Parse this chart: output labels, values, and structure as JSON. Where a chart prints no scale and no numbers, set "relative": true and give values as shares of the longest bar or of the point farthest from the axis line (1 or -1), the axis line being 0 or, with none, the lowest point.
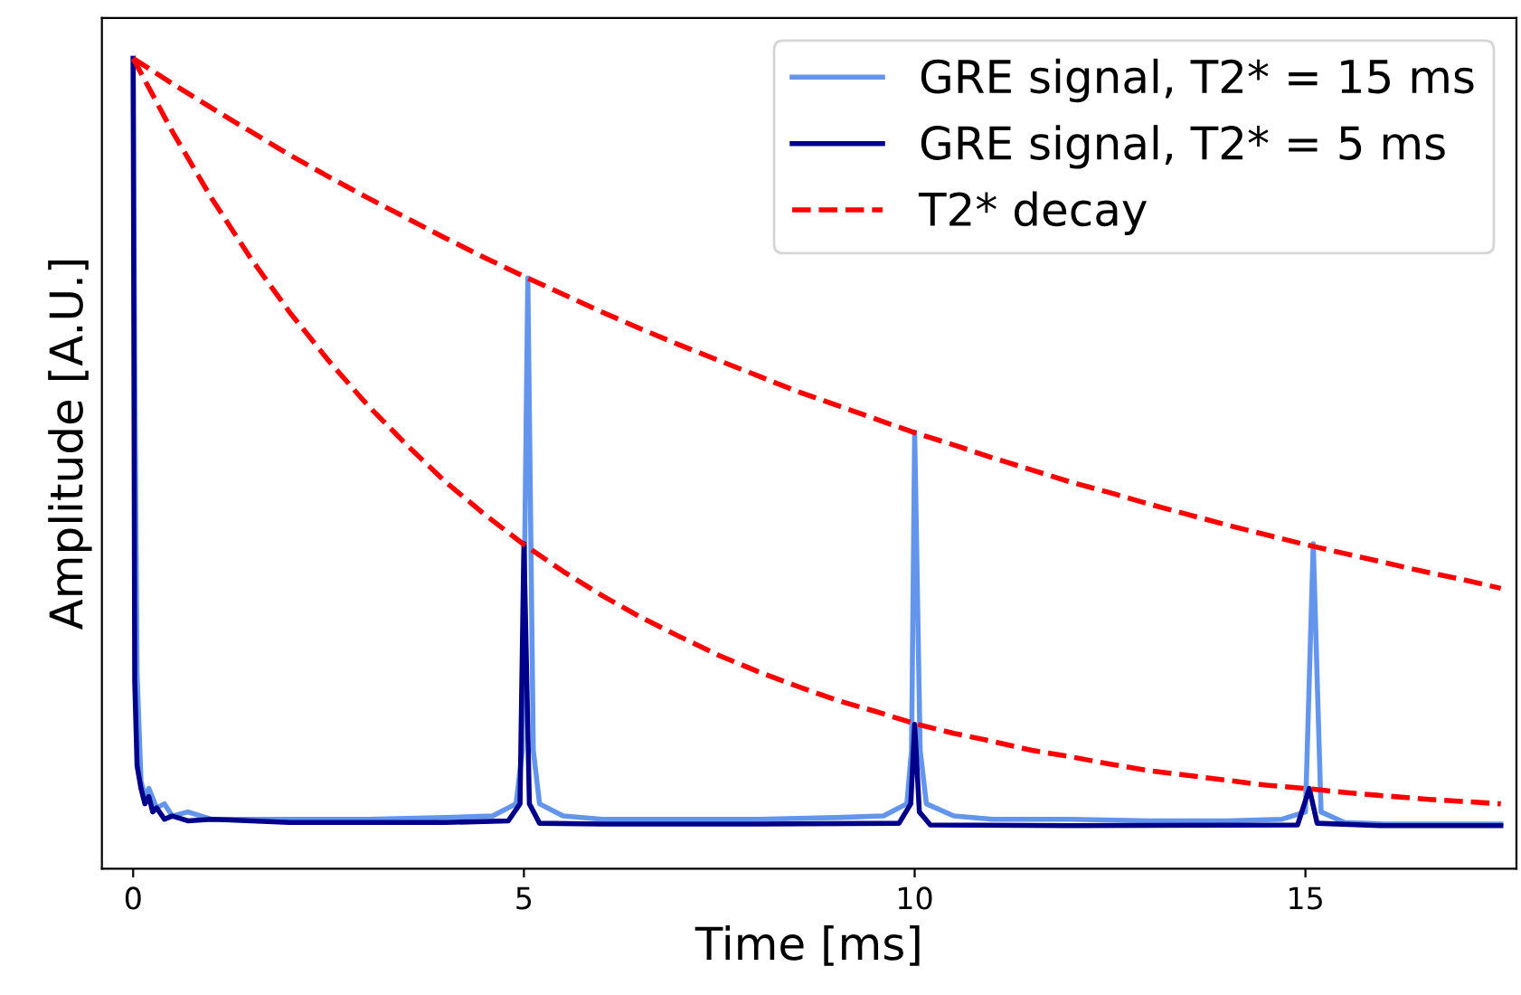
{
  "chart_data": {
    "type": "line",
    "xlabel": "Time [ms]",
    "ylabel": "Amplitude [A.U.]",
    "relative": true,
    "tick_labels": "x",
    "grid": false,
    "legend": "top right",
    "marker": "none",
    "xlim": [
      -0.4,
      17.7
    ],
    "xticks": [
      0,
      5,
      10,
      15
    ],
    "series": [
      {
        "name": "GRE signal, T2* = 15 ms",
        "color": "#6495ed",
        "line_style": "solid",
        "x": [
          0,
          0.02,
          0.05,
          0.1,
          0.15,
          0.2,
          0.3,
          0.4,
          0.5,
          0.7,
          1,
          2,
          3,
          4,
          4.6,
          4.9,
          4.98,
          5.05,
          5.12,
          5.2,
          5.5,
          6,
          7,
          8,
          9,
          9.6,
          9.9,
          9.96,
          10.0,
          10.07,
          10.15,
          10.5,
          11,
          12,
          13,
          14,
          14.7,
          15.0,
          15.1,
          15.2,
          15.5,
          16,
          17.5
        ],
        "values": [
          1.0,
          0.621,
          0.241,
          0.108,
          0.089,
          0.099,
          0.075,
          0.08,
          0.065,
          0.07,
          0.061,
          0.061,
          0.061,
          0.063,
          0.065,
          0.08,
          0.146,
          0.729,
          0.146,
          0.08,
          0.065,
          0.061,
          0.061,
          0.061,
          0.063,
          0.065,
          0.08,
          0.146,
          0.539,
          0.146,
          0.08,
          0.065,
          0.061,
          0.061,
          0.059,
          0.059,
          0.061,
          0.07,
          0.401,
          0.07,
          0.057,
          0.055,
          0.055
        ]
      },
      {
        "name": "GRE signal, T2* = 5 ms",
        "color": "#00008b",
        "line_style": "solid",
        "x": [
          0,
          0.02,
          0.05,
          0.1,
          0.15,
          0.2,
          0.25,
          0.3,
          0.4,
          0.5,
          0.7,
          1,
          2,
          3,
          4,
          4.8,
          4.95,
          5.0,
          5.07,
          5.2,
          6,
          8,
          9.8,
          9.95,
          10.0,
          10.06,
          10.2,
          12,
          14.9,
          15.05,
          15.15,
          16,
          17.5
        ],
        "values": [
          1.0,
          0.232,
          0.127,
          0.099,
          0.08,
          0.089,
          0.07,
          0.075,
          0.061,
          0.065,
          0.059,
          0.061,
          0.057,
          0.057,
          0.057,
          0.059,
          0.08,
          0.401,
          0.08,
          0.056,
          0.055,
          0.055,
          0.056,
          0.08,
          0.178,
          0.07,
          0.054,
          0.053,
          0.054,
          0.099,
          0.056,
          0.053,
          0.053
        ]
      },
      {
        "name": "T2* decay",
        "color": "#ff0000",
        "line_style": "dashed",
        "x": [
          0,
          0.5,
          1,
          1.5,
          2,
          2.5,
          3,
          3.5,
          4,
          4.5,
          5,
          5.5,
          6,
          6.5,
          7,
          7.5,
          8,
          8.5,
          9,
          9.5,
          10,
          10.5,
          11,
          11.5,
          12,
          12.5,
          13,
          13.5,
          14,
          14.5,
          15,
          15.5,
          16,
          16.5,
          17,
          17.5
        ],
        "values": [
          1,
          0.969,
          0.939,
          0.91,
          0.881,
          0.854,
          0.828,
          0.803,
          0.778,
          0.754,
          0.731,
          0.709,
          0.687,
          0.666,
          0.646,
          0.627,
          0.608,
          0.589,
          0.572,
          0.555,
          0.538,
          0.523,
          0.507,
          0.492,
          0.477,
          0.464,
          0.45,
          0.437,
          0.424,
          0.412,
          0.4,
          0.389,
          0.378,
          0.367,
          0.357,
          0.346
        ]
      },
      {
        "color": "#ff0000",
        "line_style": "dashed",
        "x": [
          0,
          0.5,
          1,
          1.5,
          2,
          2.5,
          3,
          3.5,
          4,
          4.5,
          5,
          5.5,
          6,
          6.5,
          7,
          7.5,
          8,
          8.5,
          9,
          9.5,
          10,
          10.5,
          11,
          11.5,
          12,
          12.5,
          13,
          13.5,
          14,
          14.5,
          15,
          15.5,
          16,
          16.5,
          17,
          17.5
        ],
        "values": [
          1,
          0.91,
          0.828,
          0.754,
          0.687,
          0.627,
          0.572,
          0.523,
          0.477,
          0.437,
          0.4,
          0.367,
          0.337,
          0.31,
          0.286,
          0.263,
          0.243,
          0.225,
          0.208,
          0.194,
          0.179,
          0.167,
          0.157,
          0.146,
          0.138,
          0.129,
          0.121,
          0.115,
          0.109,
          0.103,
          0.099,
          0.094,
          0.09,
          0.086,
          0.083,
          0.08
        ]
      }
    ]
  }
}
